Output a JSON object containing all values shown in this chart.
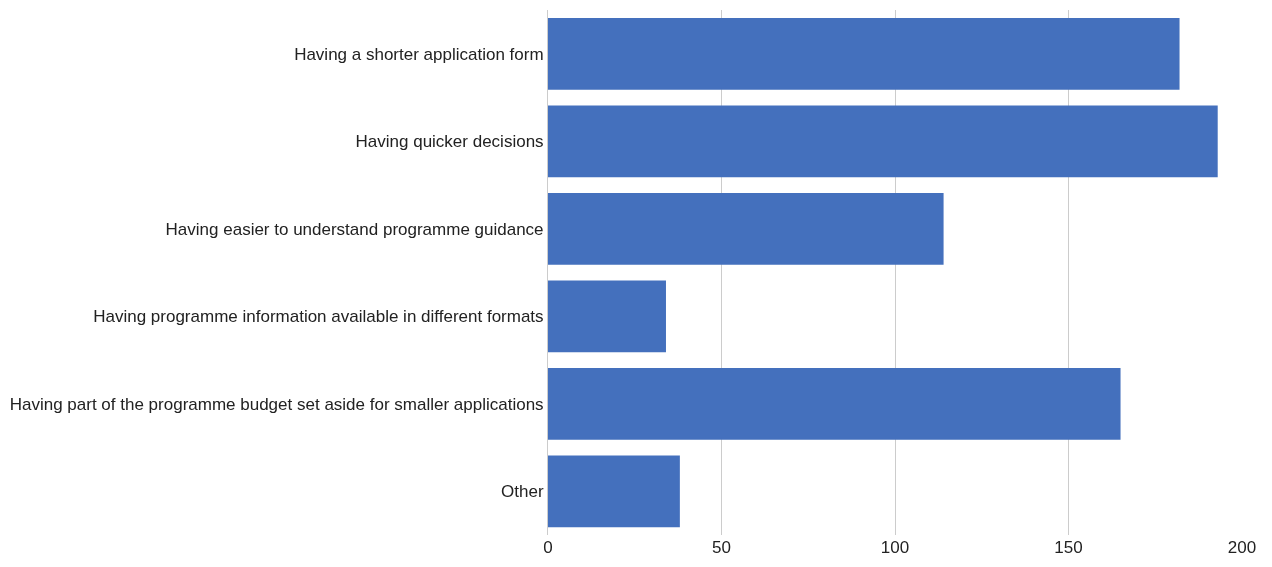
{
  "chart_data": {
    "type": "bar",
    "orientation": "horizontal",
    "categories": [
      "Having a shorter application form",
      "Having quicker decisions",
      "Having easier to understand programme guidance",
      "Having programme information available in different formats",
      "Having part of the programme budget set aside for smaller applications",
      "Other"
    ],
    "values": [
      182,
      193,
      114,
      34,
      165,
      38
    ],
    "color": "#4470bd",
    "xlim": [
      0,
      200
    ],
    "xticks": [
      0,
      50,
      100,
      150,
      200
    ],
    "grid": "x"
  }
}
